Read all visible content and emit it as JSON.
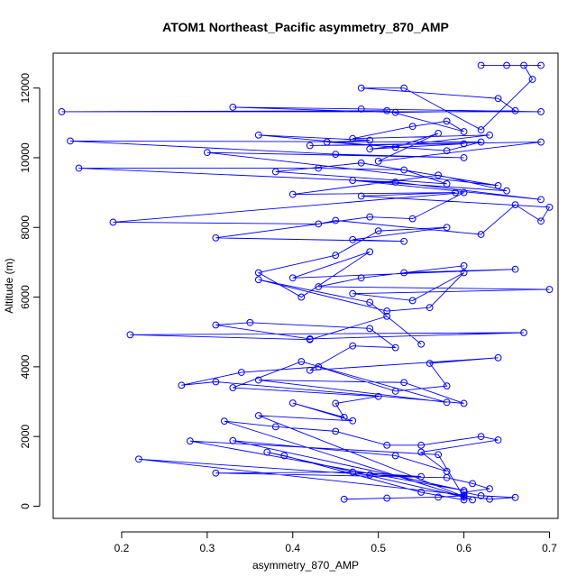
{
  "chart_data": {
    "type": "line",
    "title": "ATOM1 Northeast_Pacific asymmetry_870_AMP",
    "xlabel": "asymmetry_870_AMP",
    "ylabel": "Altitude (m)",
    "xlim": [
      0.12,
      0.71
    ],
    "ylim": [
      -350,
      13000
    ],
    "xticks": [
      0.2,
      0.3,
      0.4,
      0.5,
      0.6,
      0.7
    ],
    "xtick_labels": [
      "0.2",
      "0.3",
      "0.4",
      "0.5",
      "0.6",
      "0.7"
    ],
    "yticks": [
      0,
      2000,
      4000,
      6000,
      8000,
      10000,
      12000
    ],
    "ytick_labels": [
      "0",
      "2000",
      "4000",
      "6000",
      "8000",
      "10000",
      "12000"
    ],
    "grid": false,
    "color": "#0000ff",
    "markers": "open-circle",
    "series": [
      {
        "points": [
          [
            0.46,
            200
          ],
          [
            0.51,
            230
          ],
          [
            0.57,
            260
          ],
          [
            0.6,
            300
          ],
          [
            0.63,
            200
          ],
          [
            0.66,
            250
          ],
          [
            0.62,
            300
          ],
          [
            0.6,
            400
          ],
          [
            0.63,
            500
          ],
          [
            0.61,
            650
          ],
          [
            0.58,
            820
          ],
          [
            0.31,
            950
          ],
          [
            0.47,
            980
          ],
          [
            0.55,
            850
          ],
          [
            0.49,
            900
          ],
          [
            0.22,
            1350
          ],
          [
            0.6,
            320
          ],
          [
            0.6,
            180
          ],
          [
            0.55,
            400
          ],
          [
            0.39,
            1450
          ],
          [
            0.37,
            1550
          ],
          [
            0.6,
            260
          ],
          [
            0.57,
            1480
          ],
          [
            0.28,
            1870
          ],
          [
            0.6,
            450
          ],
          [
            0.33,
            1880
          ],
          [
            0.52,
            1450
          ],
          [
            0.58,
            1000
          ],
          [
            0.55,
            1550
          ],
          [
            0.64,
            1900
          ],
          [
            0.62,
            2000
          ],
          [
            0.55,
            1750
          ],
          [
            0.51,
            1750
          ],
          [
            0.45,
            2150
          ],
          [
            0.38,
            2280
          ],
          [
            0.32,
            2440
          ],
          [
            0.61,
            180
          ],
          [
            0.36,
            2600
          ],
          [
            0.47,
            2450
          ],
          [
            0.4,
            2960
          ],
          [
            0.46,
            2550
          ],
          [
            0.45,
            2950
          ],
          [
            0.5,
            3150
          ],
          [
            0.33,
            3400
          ],
          [
            0.41,
            4150
          ],
          [
            0.58,
            2980
          ],
          [
            0.36,
            3620
          ],
          [
            0.53,
            3550
          ],
          [
            0.6,
            2950
          ],
          [
            0.31,
            3570
          ],
          [
            0.27,
            3470
          ],
          [
            0.34,
            3840
          ],
          [
            0.43,
            4000
          ],
          [
            0.52,
            3300
          ],
          [
            0.58,
            3450
          ],
          [
            0.56,
            4100
          ],
          [
            0.64,
            4260
          ],
          [
            0.42,
            3900
          ],
          [
            0.47,
            4600
          ],
          [
            0.52,
            4550
          ],
          [
            0.49,
            5100
          ],
          [
            0.35,
            5270
          ],
          [
            0.31,
            5200
          ],
          [
            0.42,
            4800
          ],
          [
            0.67,
            4980
          ],
          [
            0.21,
            4920
          ],
          [
            0.42,
            4780
          ],
          [
            0.51,
            5450
          ],
          [
            0.55,
            4650
          ],
          [
            0.49,
            5850
          ],
          [
            0.36,
            6500
          ],
          [
            0.51,
            5600
          ],
          [
            0.56,
            5700
          ],
          [
            0.6,
            6700
          ],
          [
            0.54,
            5900
          ],
          [
            0.47,
            6100
          ],
          [
            0.7,
            6220
          ],
          [
            0.43,
            6300
          ],
          [
            0.48,
            6550
          ],
          [
            0.6,
            6900
          ],
          [
            0.53,
            6700
          ],
          [
            0.66,
            6800
          ],
          [
            0.4,
            6550
          ],
          [
            0.49,
            7300
          ],
          [
            0.41,
            6000
          ],
          [
            0.36,
            6700
          ],
          [
            0.45,
            7200
          ],
          [
            0.5,
            7900
          ],
          [
            0.58,
            8000
          ],
          [
            0.47,
            7650
          ],
          [
            0.53,
            7600
          ],
          [
            0.31,
            7700
          ],
          [
            0.49,
            8300
          ],
          [
            0.54,
            8250
          ],
          [
            0.6,
            9000
          ],
          [
            0.19,
            8150
          ],
          [
            0.43,
            8100
          ],
          [
            0.45,
            8200
          ],
          [
            0.62,
            7800
          ],
          [
            0.66,
            8650
          ],
          [
            0.69,
            8180
          ],
          [
            0.7,
            8580
          ],
          [
            0.48,
            8900
          ],
          [
            0.59,
            9000
          ],
          [
            0.4,
            8950
          ],
          [
            0.57,
            9500
          ],
          [
            0.65,
            9050
          ],
          [
            0.47,
            9350
          ],
          [
            0.69,
            8800
          ],
          [
            0.52,
            9300
          ],
          [
            0.15,
            9700
          ],
          [
            0.43,
            9700
          ],
          [
            0.53,
            9650
          ],
          [
            0.58,
            9250
          ],
          [
            0.38,
            9600
          ],
          [
            0.48,
            9850
          ],
          [
            0.64,
            9200
          ],
          [
            0.3,
            10150
          ],
          [
            0.6,
            10000
          ],
          [
            0.45,
            10100
          ],
          [
            0.14,
            10480
          ],
          [
            0.62,
            10450
          ],
          [
            0.58,
            10200
          ],
          [
            0.44,
            10450
          ],
          [
            0.49,
            10500
          ],
          [
            0.36,
            10650
          ],
          [
            0.52,
            10300
          ],
          [
            0.57,
            10700
          ],
          [
            0.5,
            9900
          ],
          [
            0.69,
            10450
          ],
          [
            0.42,
            10350
          ],
          [
            0.6,
            10400
          ],
          [
            0.49,
            10250
          ],
          [
            0.63,
            10650
          ],
          [
            0.47,
            10550
          ],
          [
            0.54,
            10900
          ],
          [
            0.58,
            11050
          ],
          [
            0.6,
            10750
          ],
          [
            0.51,
            11350
          ],
          [
            0.13,
            11320
          ],
          [
            0.69,
            11320
          ],
          [
            0.48,
            11400
          ],
          [
            0.33,
            11450
          ],
          [
            0.52,
            11300
          ],
          [
            0.66,
            11350
          ],
          [
            0.64,
            11700
          ],
          [
            0.48,
            12000
          ],
          [
            0.53,
            12000
          ],
          [
            0.62,
            10800
          ],
          [
            0.68,
            12250
          ],
          [
            0.67,
            12650
          ],
          [
            0.62,
            12650
          ],
          [
            0.65,
            12650
          ],
          [
            0.69,
            12650
          ]
        ]
      }
    ]
  }
}
